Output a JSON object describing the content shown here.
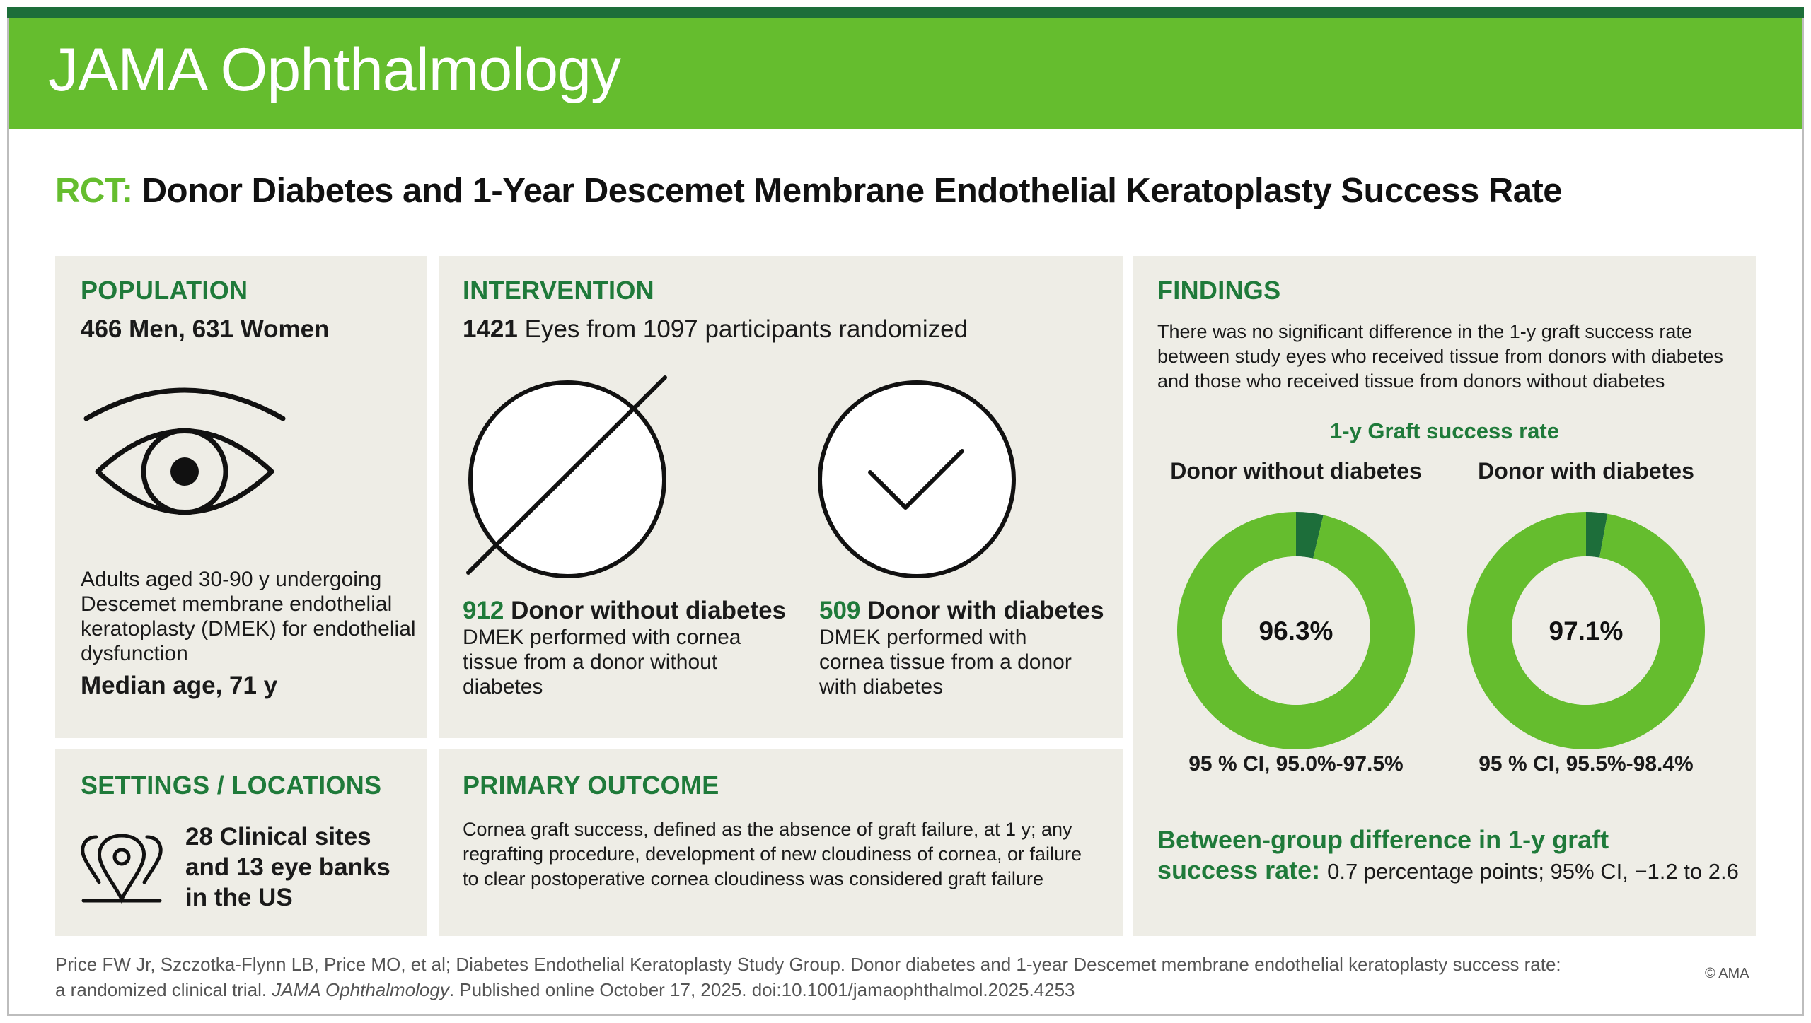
{
  "journal": "JAMA Ophthalmology",
  "title": {
    "tag": "RCT:",
    "text": "Donor Diabetes and 1-Year Descemet Membrane Endothelial Keratoplasty Success Rate"
  },
  "population": {
    "heading": "POPULATION",
    "counts": "466 Men, 631 Women",
    "icon": "eye-icon",
    "description_lines": [
      "Adults aged 30-90 y undergoing",
      "Descemet membrane endothelial",
      "keratoplasty (DMEK) for endothelial",
      "dysfunction"
    ],
    "median_age": "Median age, 71 y"
  },
  "intervention": {
    "heading": "INTERVENTION",
    "summary_num": "1421",
    "summary_text": "Eyes from 1097 participants randomized",
    "arms": [
      {
        "icon": "no-symbol-icon",
        "count": "912",
        "label": "Donor without diabetes",
        "description_lines": [
          "DMEK performed with cornea",
          "tissue from a donor without",
          "diabetes"
        ]
      },
      {
        "icon": "checkmark-circle-icon",
        "count": "509",
        "label": "Donor with diabetes",
        "description_lines": [
          "DMEK performed with",
          "cornea tissue from a donor",
          "with diabetes"
        ]
      }
    ]
  },
  "settings": {
    "heading": "SETTINGS / LOCATIONS",
    "icon": "location-pins-icon",
    "lines": [
      "28 Clinical sites",
      "and 13 eye banks",
      "in the US"
    ]
  },
  "outcome": {
    "heading": "PRIMARY OUTCOME",
    "lines": [
      "Cornea graft success, defined as the absence of graft failure, at 1 y; any",
      "regrafting procedure, development of new cloudiness of cornea, or failure",
      "to clear postoperative cornea cloudiness was considered graft failure"
    ]
  },
  "findings": {
    "heading": "FINDINGS",
    "lines": [
      "There was no significant difference in the 1-y graft success rate",
      "between study eyes who received tissue from donors with diabetes",
      "and those who received tissue from donors without diabetes"
    ],
    "chart_title": "1-y Graft success rate",
    "difference_label_line1": "Between-group difference in 1-y graft",
    "difference_label_line2": "success rate:",
    "difference_value": "0.7 percentage points; 95% CI, −1.2 to 2.6"
  },
  "chart_data": {
    "type": "pie",
    "title": "1-y Graft success rate",
    "series": [
      {
        "name": "Donor without diabetes",
        "value": 96.3,
        "label": "96.3%",
        "ci": "95 % CI, 95.0%-97.5%"
      },
      {
        "name": "Donor with diabetes",
        "value": 97.1,
        "label": "97.1%",
        "ci": "95 % CI, 95.5%-98.4%"
      }
    ],
    "colors": {
      "success": "#65bd2e",
      "failure": "#1d6e3a"
    }
  },
  "citation": {
    "line1": "Price FW Jr, Szczotka-Flynn LB, Price MO, et al; Diabetes Endothelial Keratoplasty Study Group. Donor diabetes and 1-year Descemet membrane endothelial keratoplasty success rate:",
    "line2_prefix": "a randomized clinical trial.",
    "line2_journal": "JAMA Ophthalmology",
    "line2_suffix": ". Published online October 17, 2025. doi:10.1001/jamaophthalmol.2025.4253"
  },
  "copyright": "© AMA"
}
